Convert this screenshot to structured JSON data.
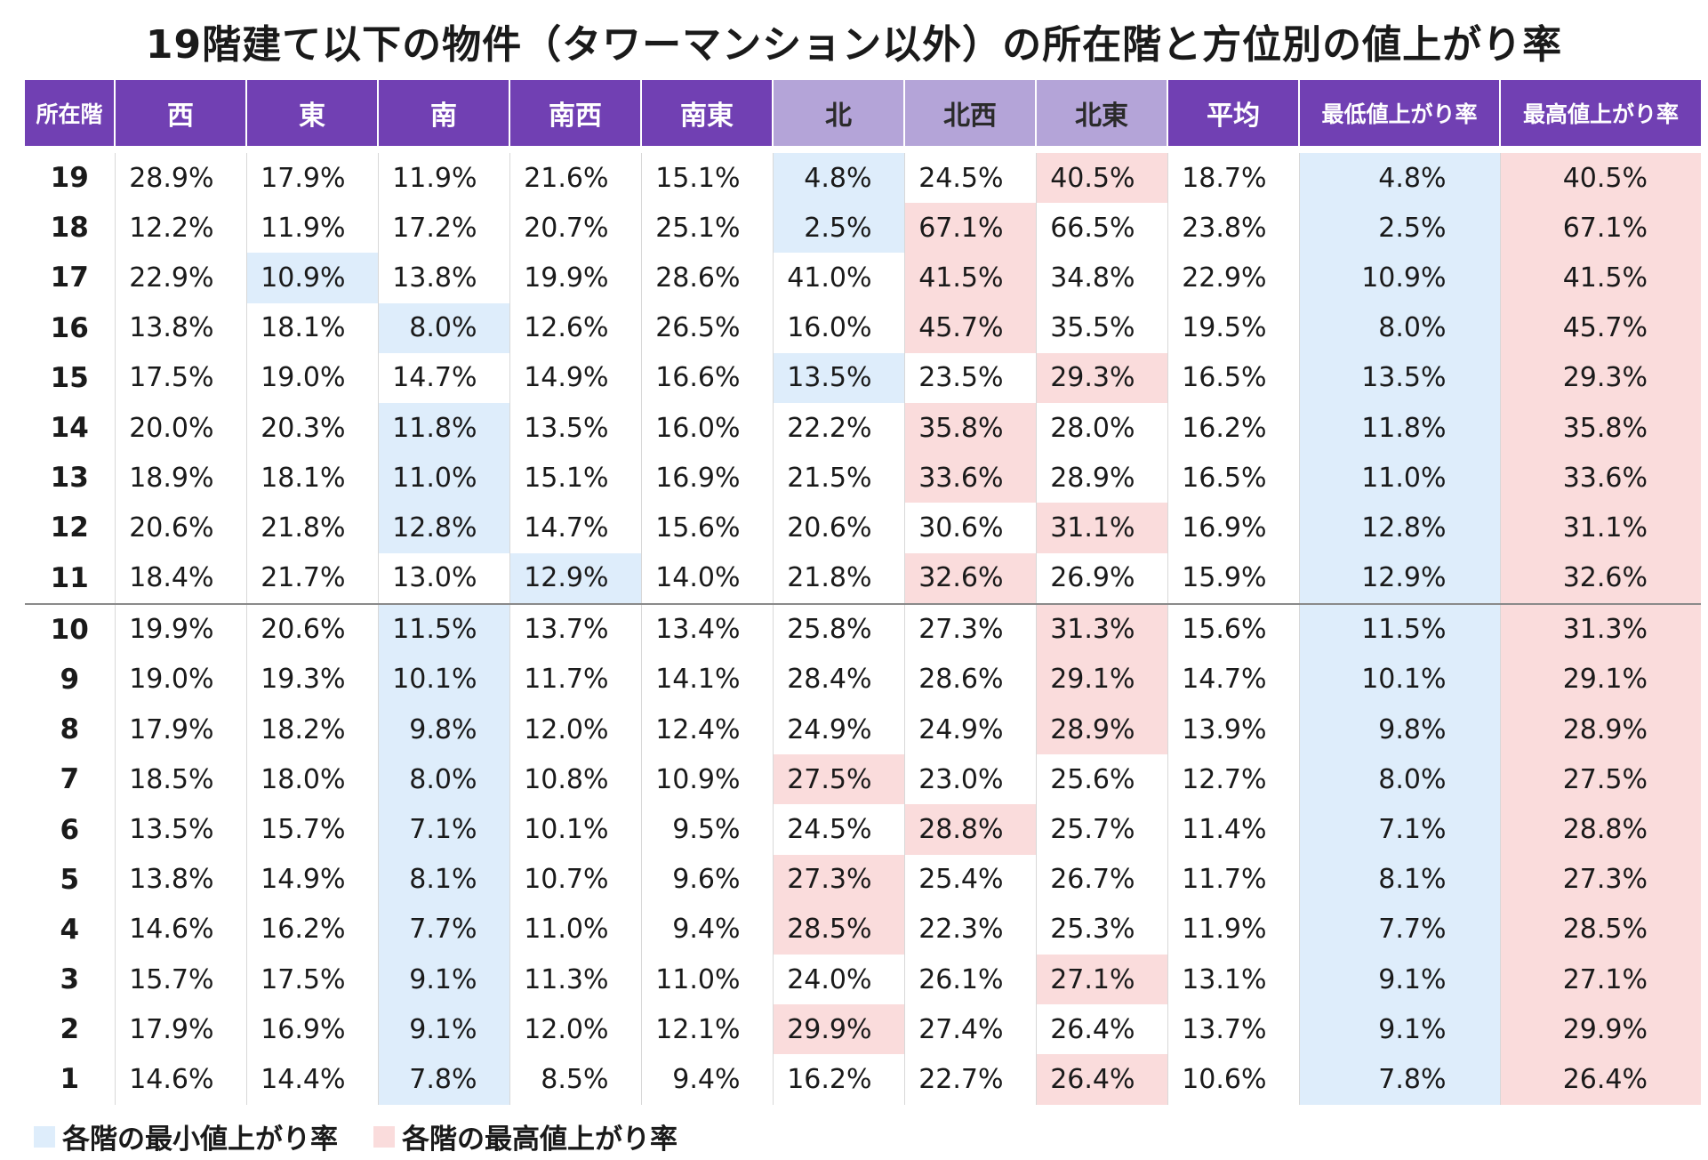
{
  "title": "19階建て以下の物件（タワーマンション以外）の所在階と方位別の値上がり率",
  "colors": {
    "header": "#7140b3",
    "header_north": "#b4a4d8",
    "min": "#deedfb",
    "max": "#fadcdc"
  },
  "legend": {
    "min_label": "各階の最小値上がり率",
    "max_label": "各階の最高値上がり率"
  },
  "chart_data": {
    "type": "table",
    "title": "19階建て以下の物件（タワーマンション以外）の所在階と方位別の値上がり率",
    "columns": [
      "所在階",
      "西",
      "東",
      "南",
      "南西",
      "南東",
      "北",
      "北西",
      "北東",
      "平均",
      "最低値上がり率",
      "最高値上がり率"
    ],
    "rows": [
      {
        "floor": "19",
        "values": [
          "28.9%",
          "17.9%",
          "11.9%",
          "21.6%",
          "15.1%",
          "4.8%",
          "24.5%",
          "40.5%"
        ],
        "avg": "18.7%",
        "min": "4.8%",
        "max": "40.5%",
        "min_col": 5,
        "max_col": 7
      },
      {
        "floor": "18",
        "values": [
          "12.2%",
          "11.9%",
          "17.2%",
          "20.7%",
          "25.1%",
          "2.5%",
          "67.1%",
          "66.5%"
        ],
        "avg": "23.8%",
        "min": "2.5%",
        "max": "67.1%",
        "min_col": 5,
        "max_col": 6
      },
      {
        "floor": "17",
        "values": [
          "22.9%",
          "10.9%",
          "13.8%",
          "19.9%",
          "28.6%",
          "41.0%",
          "41.5%",
          "34.8%"
        ],
        "avg": "22.9%",
        "min": "10.9%",
        "max": "41.5%",
        "min_col": 1,
        "max_col": 6
      },
      {
        "floor": "16",
        "values": [
          "13.8%",
          "18.1%",
          "8.0%",
          "12.6%",
          "26.5%",
          "16.0%",
          "45.7%",
          "35.5%"
        ],
        "avg": "19.5%",
        "min": "8.0%",
        "max": "45.7%",
        "min_col": 2,
        "max_col": 6
      },
      {
        "floor": "15",
        "values": [
          "17.5%",
          "19.0%",
          "14.7%",
          "14.9%",
          "16.6%",
          "13.5%",
          "23.5%",
          "29.3%"
        ],
        "avg": "16.5%",
        "min": "13.5%",
        "max": "29.3%",
        "min_col": 5,
        "max_col": 7
      },
      {
        "floor": "14",
        "values": [
          "20.0%",
          "20.3%",
          "11.8%",
          "13.5%",
          "16.0%",
          "22.2%",
          "35.8%",
          "28.0%"
        ],
        "avg": "16.2%",
        "min": "11.8%",
        "max": "35.8%",
        "min_col": 2,
        "max_col": 6
      },
      {
        "floor": "13",
        "values": [
          "18.9%",
          "18.1%",
          "11.0%",
          "15.1%",
          "16.9%",
          "21.5%",
          "33.6%",
          "28.9%"
        ],
        "avg": "16.5%",
        "min": "11.0%",
        "max": "33.6%",
        "min_col": 2,
        "max_col": 6
      },
      {
        "floor": "12",
        "values": [
          "20.6%",
          "21.8%",
          "12.8%",
          "14.7%",
          "15.6%",
          "20.6%",
          "30.6%",
          "31.1%"
        ],
        "avg": "16.9%",
        "min": "12.8%",
        "max": "31.1%",
        "min_col": 2,
        "max_col": 7
      },
      {
        "floor": "11",
        "values": [
          "18.4%",
          "21.7%",
          "13.0%",
          "12.9%",
          "14.0%",
          "21.8%",
          "32.6%",
          "26.9%"
        ],
        "avg": "15.9%",
        "min": "12.9%",
        "max": "32.6%",
        "min_col": 3,
        "max_col": 6
      },
      {
        "floor": "10",
        "values": [
          "19.9%",
          "20.6%",
          "11.5%",
          "13.7%",
          "13.4%",
          "25.8%",
          "27.3%",
          "31.3%"
        ],
        "avg": "15.6%",
        "min": "11.5%",
        "max": "31.3%",
        "min_col": 2,
        "max_col": 7
      },
      {
        "floor": "9",
        "values": [
          "19.0%",
          "19.3%",
          "10.1%",
          "11.7%",
          "14.1%",
          "28.4%",
          "28.6%",
          "29.1%"
        ],
        "avg": "14.7%",
        "min": "10.1%",
        "max": "29.1%",
        "min_col": 2,
        "max_col": 7
      },
      {
        "floor": "8",
        "values": [
          "17.9%",
          "18.2%",
          "9.8%",
          "12.0%",
          "12.4%",
          "24.9%",
          "24.9%",
          "28.9%"
        ],
        "avg": "13.9%",
        "min": "9.8%",
        "max": "28.9%",
        "min_col": 2,
        "max_col": 7
      },
      {
        "floor": "7",
        "values": [
          "18.5%",
          "18.0%",
          "8.0%",
          "10.8%",
          "10.9%",
          "27.5%",
          "23.0%",
          "25.6%"
        ],
        "avg": "12.7%",
        "min": "8.0%",
        "max": "27.5%",
        "min_col": 2,
        "max_col": 5
      },
      {
        "floor": "6",
        "values": [
          "13.5%",
          "15.7%",
          "7.1%",
          "10.1%",
          "9.5%",
          "24.5%",
          "28.8%",
          "25.7%"
        ],
        "avg": "11.4%",
        "min": "7.1%",
        "max": "28.8%",
        "min_col": 2,
        "max_col": 6
      },
      {
        "floor": "5",
        "values": [
          "13.8%",
          "14.9%",
          "8.1%",
          "10.7%",
          "9.6%",
          "27.3%",
          "25.4%",
          "26.7%"
        ],
        "avg": "11.7%",
        "min": "8.1%",
        "max": "27.3%",
        "min_col": 2,
        "max_col": 5
      },
      {
        "floor": "4",
        "values": [
          "14.6%",
          "16.2%",
          "7.7%",
          "11.0%",
          "9.4%",
          "28.5%",
          "22.3%",
          "25.3%"
        ],
        "avg": "11.9%",
        "min": "7.7%",
        "max": "28.5%",
        "min_col": 2,
        "max_col": 5
      },
      {
        "floor": "3",
        "values": [
          "15.7%",
          "17.5%",
          "9.1%",
          "11.3%",
          "11.0%",
          "24.0%",
          "26.1%",
          "27.1%"
        ],
        "avg": "13.1%",
        "min": "9.1%",
        "max": "27.1%",
        "min_col": 2,
        "max_col": 7
      },
      {
        "floor": "2",
        "values": [
          "17.9%",
          "16.9%",
          "9.1%",
          "12.0%",
          "12.1%",
          "29.9%",
          "27.4%",
          "26.4%"
        ],
        "avg": "13.7%",
        "min": "9.1%",
        "max": "29.9%",
        "min_col": 2,
        "max_col": 5
      },
      {
        "floor": "1",
        "values": [
          "14.6%",
          "14.4%",
          "7.8%",
          "8.5%",
          "9.4%",
          "16.2%",
          "22.7%",
          "26.4%"
        ],
        "avg": "10.6%",
        "min": "7.8%",
        "max": "26.4%",
        "min_col": 2,
        "max_col": 7
      }
    ]
  }
}
